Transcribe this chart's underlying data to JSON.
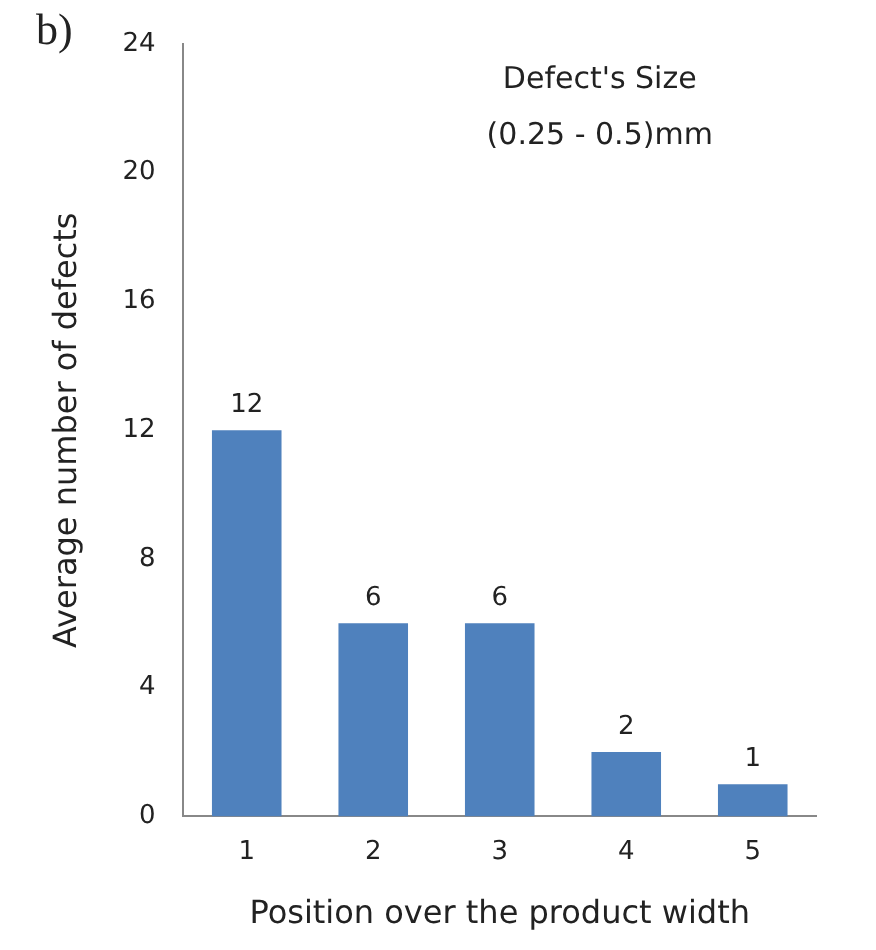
{
  "chart_data": {
    "type": "bar",
    "title": "Defect's Size",
    "subtitle": "(0.25 - 0.5)mm",
    "xlabel": "Position over the product width",
    "ylabel": "Average number of defects",
    "annotations": [
      "b)"
    ],
    "categories": [
      "1",
      "2",
      "3",
      "4",
      "5"
    ],
    "values": [
      12,
      6,
      6,
      2,
      1
    ],
    "color": "#4f81bd",
    "ylim": [
      0,
      24
    ],
    "yticks": [
      0,
      4,
      8,
      12,
      16,
      20,
      24
    ],
    "grid": false,
    "legend": false,
    "data_labels": true
  }
}
